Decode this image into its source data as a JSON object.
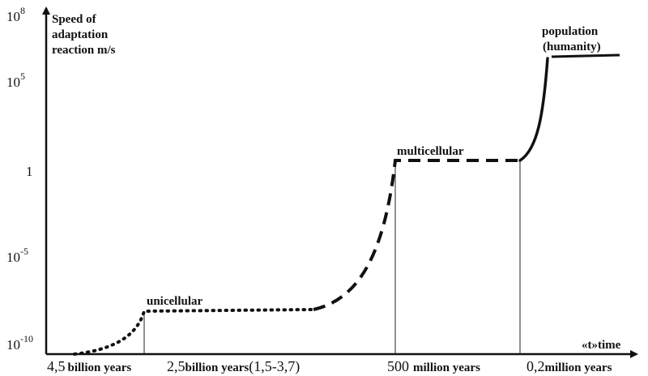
{
  "chart_data": {
    "type": "line",
    "y_scale": "log",
    "ylabel": "Speed of adaptation reaction m/s",
    "xlabel": "«t»time",
    "y_ticks": [
      {
        "base": "10",
        "exp": "8"
      },
      {
        "base": "10",
        "exp": "5"
      },
      {
        "base": "1",
        "exp": ""
      },
      {
        "base": "10",
        "exp": "-5"
      },
      {
        "base": "10",
        "exp": "-10"
      }
    ],
    "x_ticks": [
      {
        "num": "4,5",
        "unit": "billion years",
        "extra": ""
      },
      {
        "num": "2,5",
        "unit": "billion years",
        "extra": "(1,5-3,7)"
      },
      {
        "num": "500",
        "unit": "million years",
        "extra": ""
      },
      {
        "num": "0,2",
        "unit": "million years",
        "extra": ""
      }
    ],
    "series": [
      {
        "name": "unicellular",
        "style": "dotted",
        "points": [
          [
            "4,5 billion years",
            1e-10
          ],
          [
            "2,5 billion years",
            1e-08
          ],
          [
            "~1 billion years",
            1e-08
          ]
        ]
      },
      {
        "name": "multicellular",
        "style": "dashed",
        "points": [
          [
            "~1 billion years",
            1e-08
          ],
          [
            "500 million years",
            1
          ],
          [
            "0,2 million years",
            1
          ]
        ]
      },
      {
        "name": "population (humanity)",
        "style": "solid",
        "points": [
          [
            "0,2 million years",
            1
          ],
          [
            "after 0,2 million years",
            10000000.0
          ]
        ]
      }
    ],
    "annotations": {
      "unicellular": "unicellular",
      "multicellular": "multicellular",
      "population_1": "population",
      "population_2": "(humanity)"
    }
  }
}
